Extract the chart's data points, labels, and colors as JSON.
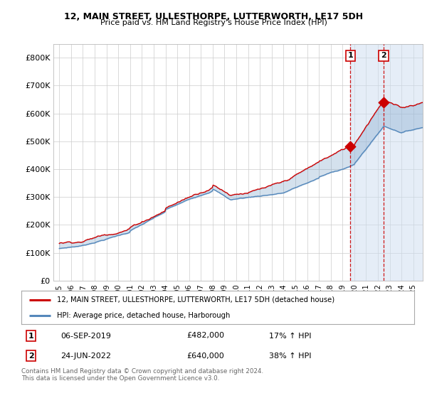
{
  "title": "12, MAIN STREET, ULLESTHORPE, LUTTERWORTH, LE17 5DH",
  "subtitle": "Price paid vs. HM Land Registry's House Price Index (HPI)",
  "legend_line1": "12, MAIN STREET, ULLESTHORPE, LUTTERWORTH, LE17 5DH (detached house)",
  "legend_line2": "HPI: Average price, detached house, Harborough",
  "transaction1_date": "06-SEP-2019",
  "transaction1_price": "£482,000",
  "transaction1_hpi": "17% ↑ HPI",
  "transaction2_date": "24-JUN-2022",
  "transaction2_price": "£640,000",
  "transaction2_hpi": "38% ↑ HPI",
  "footer": "Contains HM Land Registry data © Crown copyright and database right 2024.\nThis data is licensed under the Open Government Licence v3.0.",
  "red_color": "#cc0000",
  "blue_color": "#5588bb",
  "shade_color": "#ccddf0",
  "ylim": [
    0,
    850000
  ],
  "yticks": [
    0,
    100000,
    200000,
    300000,
    400000,
    500000,
    600000,
    700000,
    800000
  ],
  "ytick_labels": [
    "£0",
    "£100K",
    "£200K",
    "£300K",
    "£400K",
    "£500K",
    "£600K",
    "£700K",
    "£800K"
  ],
  "xtick_years": [
    1995,
    1996,
    1997,
    1998,
    1999,
    2000,
    2001,
    2002,
    2003,
    2004,
    2005,
    2006,
    2007,
    2008,
    2009,
    2010,
    2011,
    2012,
    2013,
    2014,
    2015,
    2016,
    2017,
    2018,
    2019,
    2020,
    2021,
    2022,
    2023,
    2024,
    2025
  ],
  "transaction1_x": 2019.67,
  "transaction2_x": 2022.48,
  "transaction1_y": 482000,
  "transaction2_y": 640000,
  "background_color": "#ffffff",
  "plot_bg_color": "#ffffff",
  "grid_color": "#cccccc"
}
